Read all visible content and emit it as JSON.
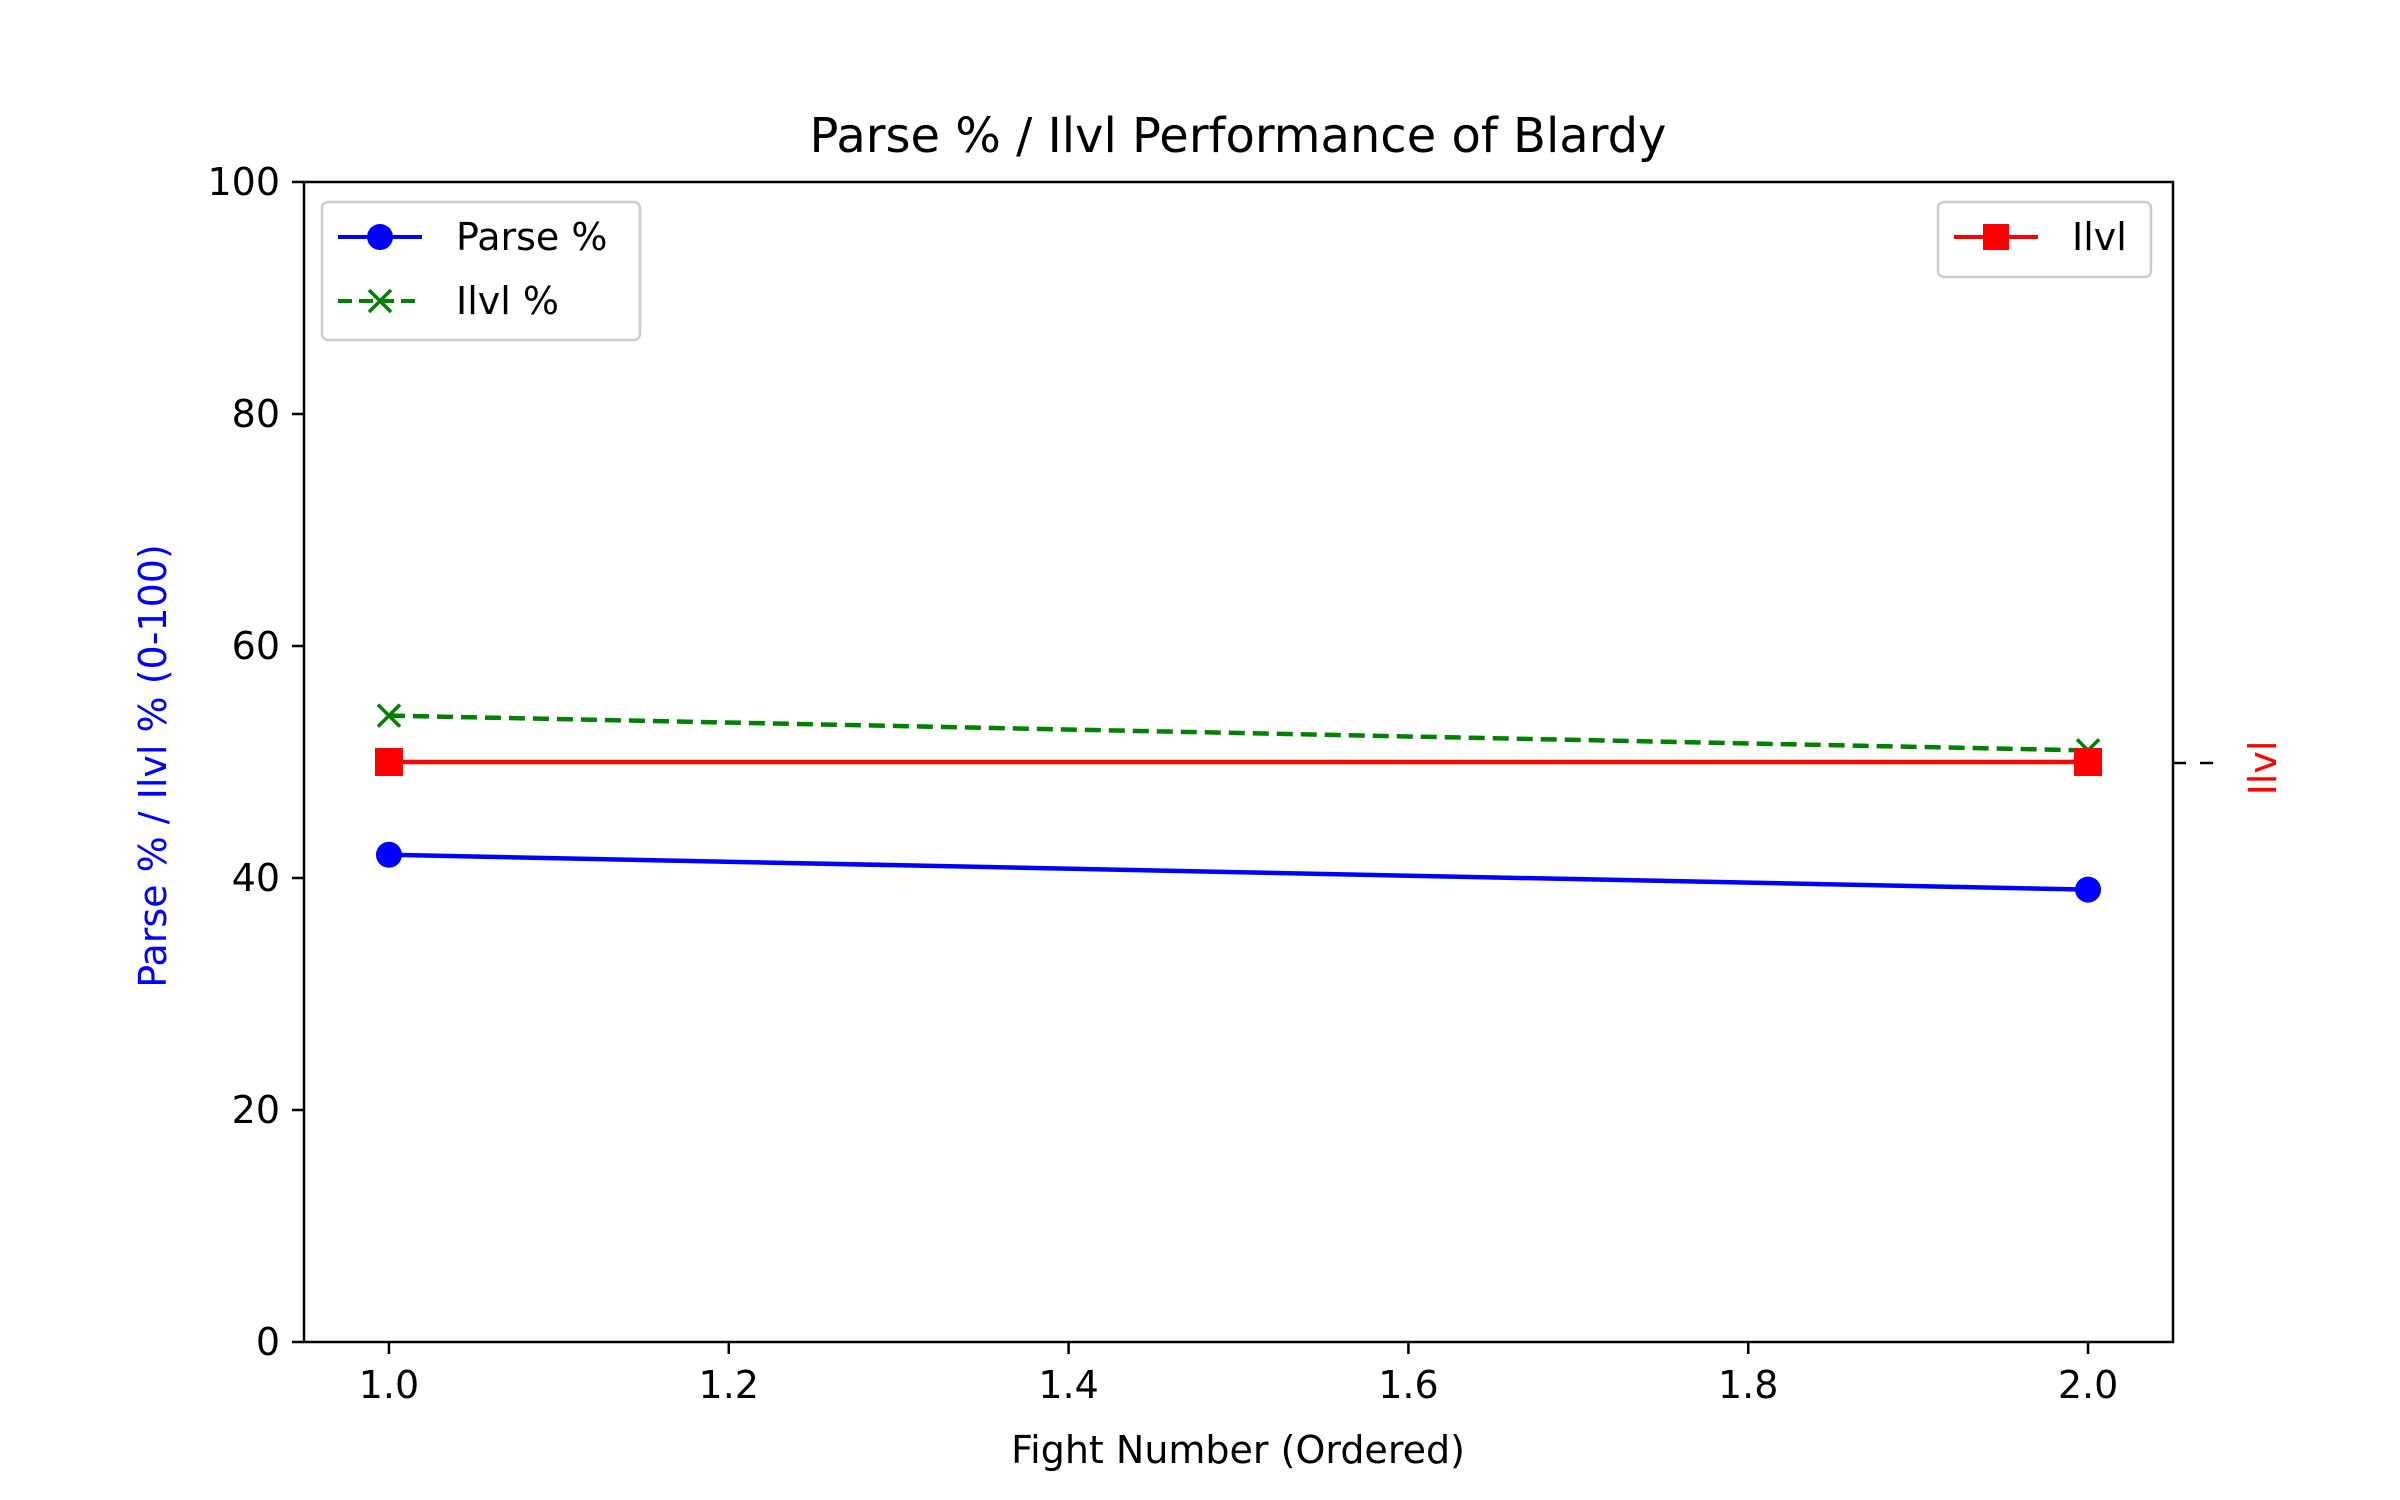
{
  "chart_data": {
    "type": "line",
    "title": "Parse % / Ilvl Performance of Blardy",
    "xlabel": "Fight Number (Ordered)",
    "ylabel": "Parse % / Ilvl % (0-100)",
    "ylabel_right": "Ilvl",
    "xlim": [
      0.95,
      2.05
    ],
    "ylim": [
      0,
      100
    ],
    "x_ticks": [
      "1.0",
      "1.2",
      "1.4",
      "1.6",
      "1.8",
      "2.0"
    ],
    "y_ticks": [
      "0",
      "20",
      "40",
      "60",
      "80",
      "100"
    ],
    "x": [
      1,
      2
    ],
    "grid": false,
    "series": [
      {
        "name": "Parse %",
        "values": [
          42,
          39
        ],
        "color": "#0000ff",
        "marker": "circle",
        "line": "solid",
        "axis": "left"
      },
      {
        "name": "Ilvl %",
        "values": [
          54,
          51
        ],
        "color": "#008000",
        "marker": "x",
        "line": "dashed",
        "axis": "left"
      },
      {
        "name": "Ilvl",
        "values": [
          50,
          50
        ],
        "color": "#ff0000",
        "marker": "square",
        "line": "solid",
        "axis": "right"
      }
    ],
    "legend_left": {
      "placement": "upper-left",
      "entries": [
        "Parse %",
        "Ilvl %"
      ]
    },
    "legend_right": {
      "placement": "upper-right",
      "entries": [
        "Ilvl"
      ]
    }
  }
}
